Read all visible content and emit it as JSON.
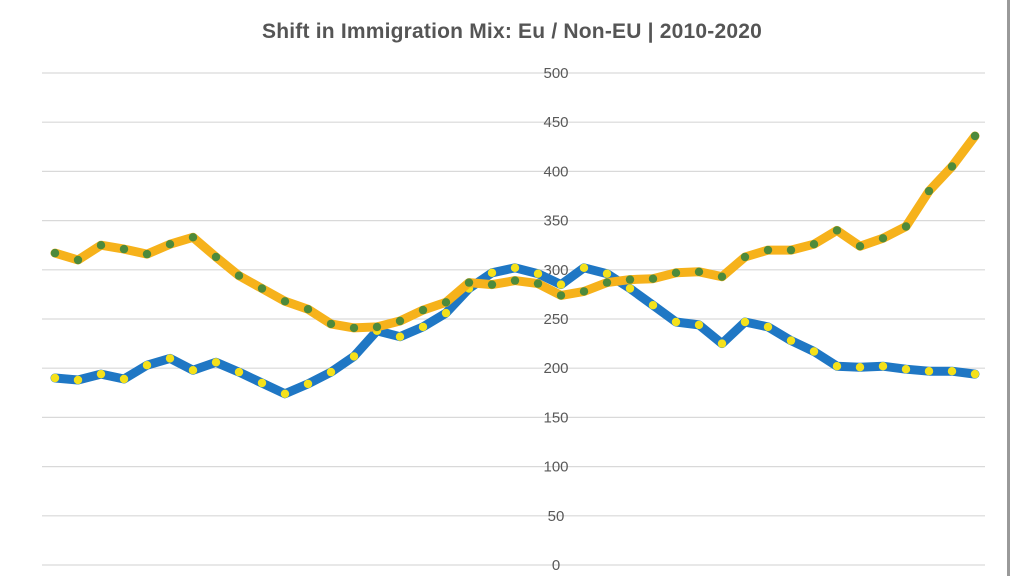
{
  "chart_data": {
    "type": "line",
    "title": "Shift in Immigration Mix:  Eu / Non-EU  |  2010-2020",
    "xlabel": "",
    "ylabel": "",
    "ylim": [
      0,
      500
    ],
    "yticks": [
      0,
      50,
      100,
      150,
      200,
      250,
      300,
      350,
      400,
      450,
      500
    ],
    "grid": true,
    "legend": "none",
    "series": [
      {
        "color": "#1f77c4",
        "marker_color": "#f5e11a",
        "values": [
          190,
          188,
          194,
          189,
          203,
          210,
          198,
          206,
          196,
          185,
          174,
          184,
          196,
          212,
          238,
          232,
          242,
          256,
          281,
          297,
          302,
          296,
          285,
          302,
          296,
          281,
          264,
          247,
          244,
          225,
          247,
          242,
          228,
          217,
          202,
          201,
          202,
          199,
          197,
          197,
          194
        ]
      },
      {
        "color": "#f6b21b",
        "marker_color": "#4d8a3b",
        "values": [
          317,
          310,
          325,
          321,
          316,
          326,
          333,
          313,
          294,
          281,
          268,
          260,
          245,
          241,
          242,
          248,
          259,
          267,
          287,
          285,
          289,
          286,
          274,
          278,
          287,
          290,
          291,
          297,
          298,
          293,
          313,
          320,
          320,
          326,
          340,
          324,
          332,
          344,
          380,
          405,
          436
        ]
      }
    ]
  }
}
